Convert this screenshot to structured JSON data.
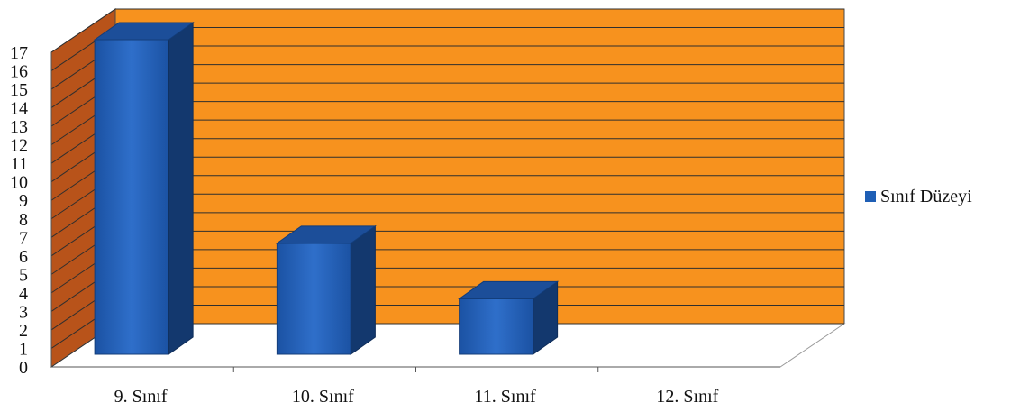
{
  "chart_data": {
    "type": "bar",
    "categories": [
      "9. Sınıf",
      "10. Sınıf",
      "11. Sınıf",
      "12. Sınıf"
    ],
    "series": [
      {
        "name": "Sınıf Düzeyi",
        "values": [
          17,
          6,
          3,
          0
        ],
        "color": "#1f5fb5"
      }
    ],
    "yticks": [
      0,
      1,
      2,
      3,
      4,
      5,
      6,
      7,
      8,
      9,
      10,
      11,
      12,
      13,
      14,
      15,
      16,
      17
    ],
    "ylim": [
      0,
      17
    ],
    "grid": true,
    "legend": "right",
    "colors": {
      "wall": "#f7921e",
      "side_wall": "#b8531a",
      "gridline": "#2f2f2f",
      "floor": "#ffffff"
    }
  }
}
